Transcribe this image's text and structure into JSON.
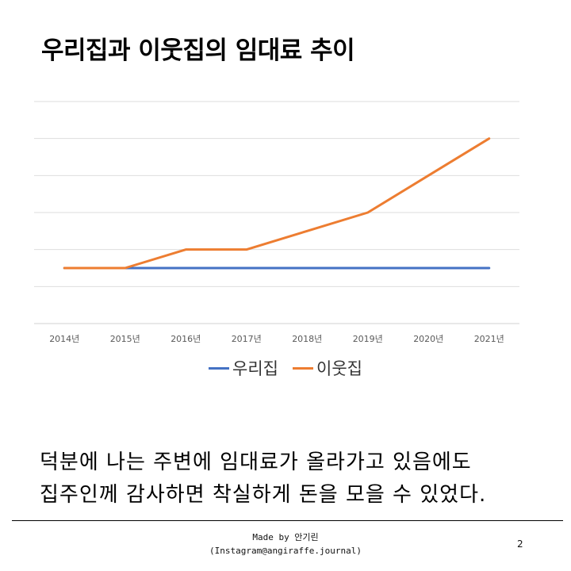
{
  "title": "우리집과 이웃집의 임대료 추이",
  "chart_data": {
    "type": "line",
    "categories": [
      "2014년",
      "2015년",
      "2016년",
      "2017년",
      "2018년",
      "2019년",
      "2020년",
      "2021년"
    ],
    "series": [
      {
        "name": "우리집",
        "color": "#4472C4",
        "values": [
          1.5,
          1.5,
          1.5,
          1.5,
          1.5,
          1.5,
          1.5,
          1.5
        ]
      },
      {
        "name": "이웃집",
        "color": "#ED7D31",
        "values": [
          1.5,
          1.5,
          2.0,
          2.0,
          2.5,
          3.0,
          4.0,
          5.0
        ]
      }
    ],
    "ylim": [
      0,
      6
    ],
    "y_gridlines": 6,
    "grid": true,
    "y_tick_labels_visible": false,
    "legend_position": "bottom",
    "xlabel": "",
    "ylabel": ""
  },
  "caption": {
    "line1": "덕분에 나는 주변에 임대료가 올라가고 있음에도",
    "line2": "집주인께 감사하면 착실하게 돈을 모을 수 있었다."
  },
  "footer": {
    "credit_line1": "Made by 안기린",
    "credit_line2": "(Instagram@angiraffe.journal)",
    "page_number": "2"
  }
}
